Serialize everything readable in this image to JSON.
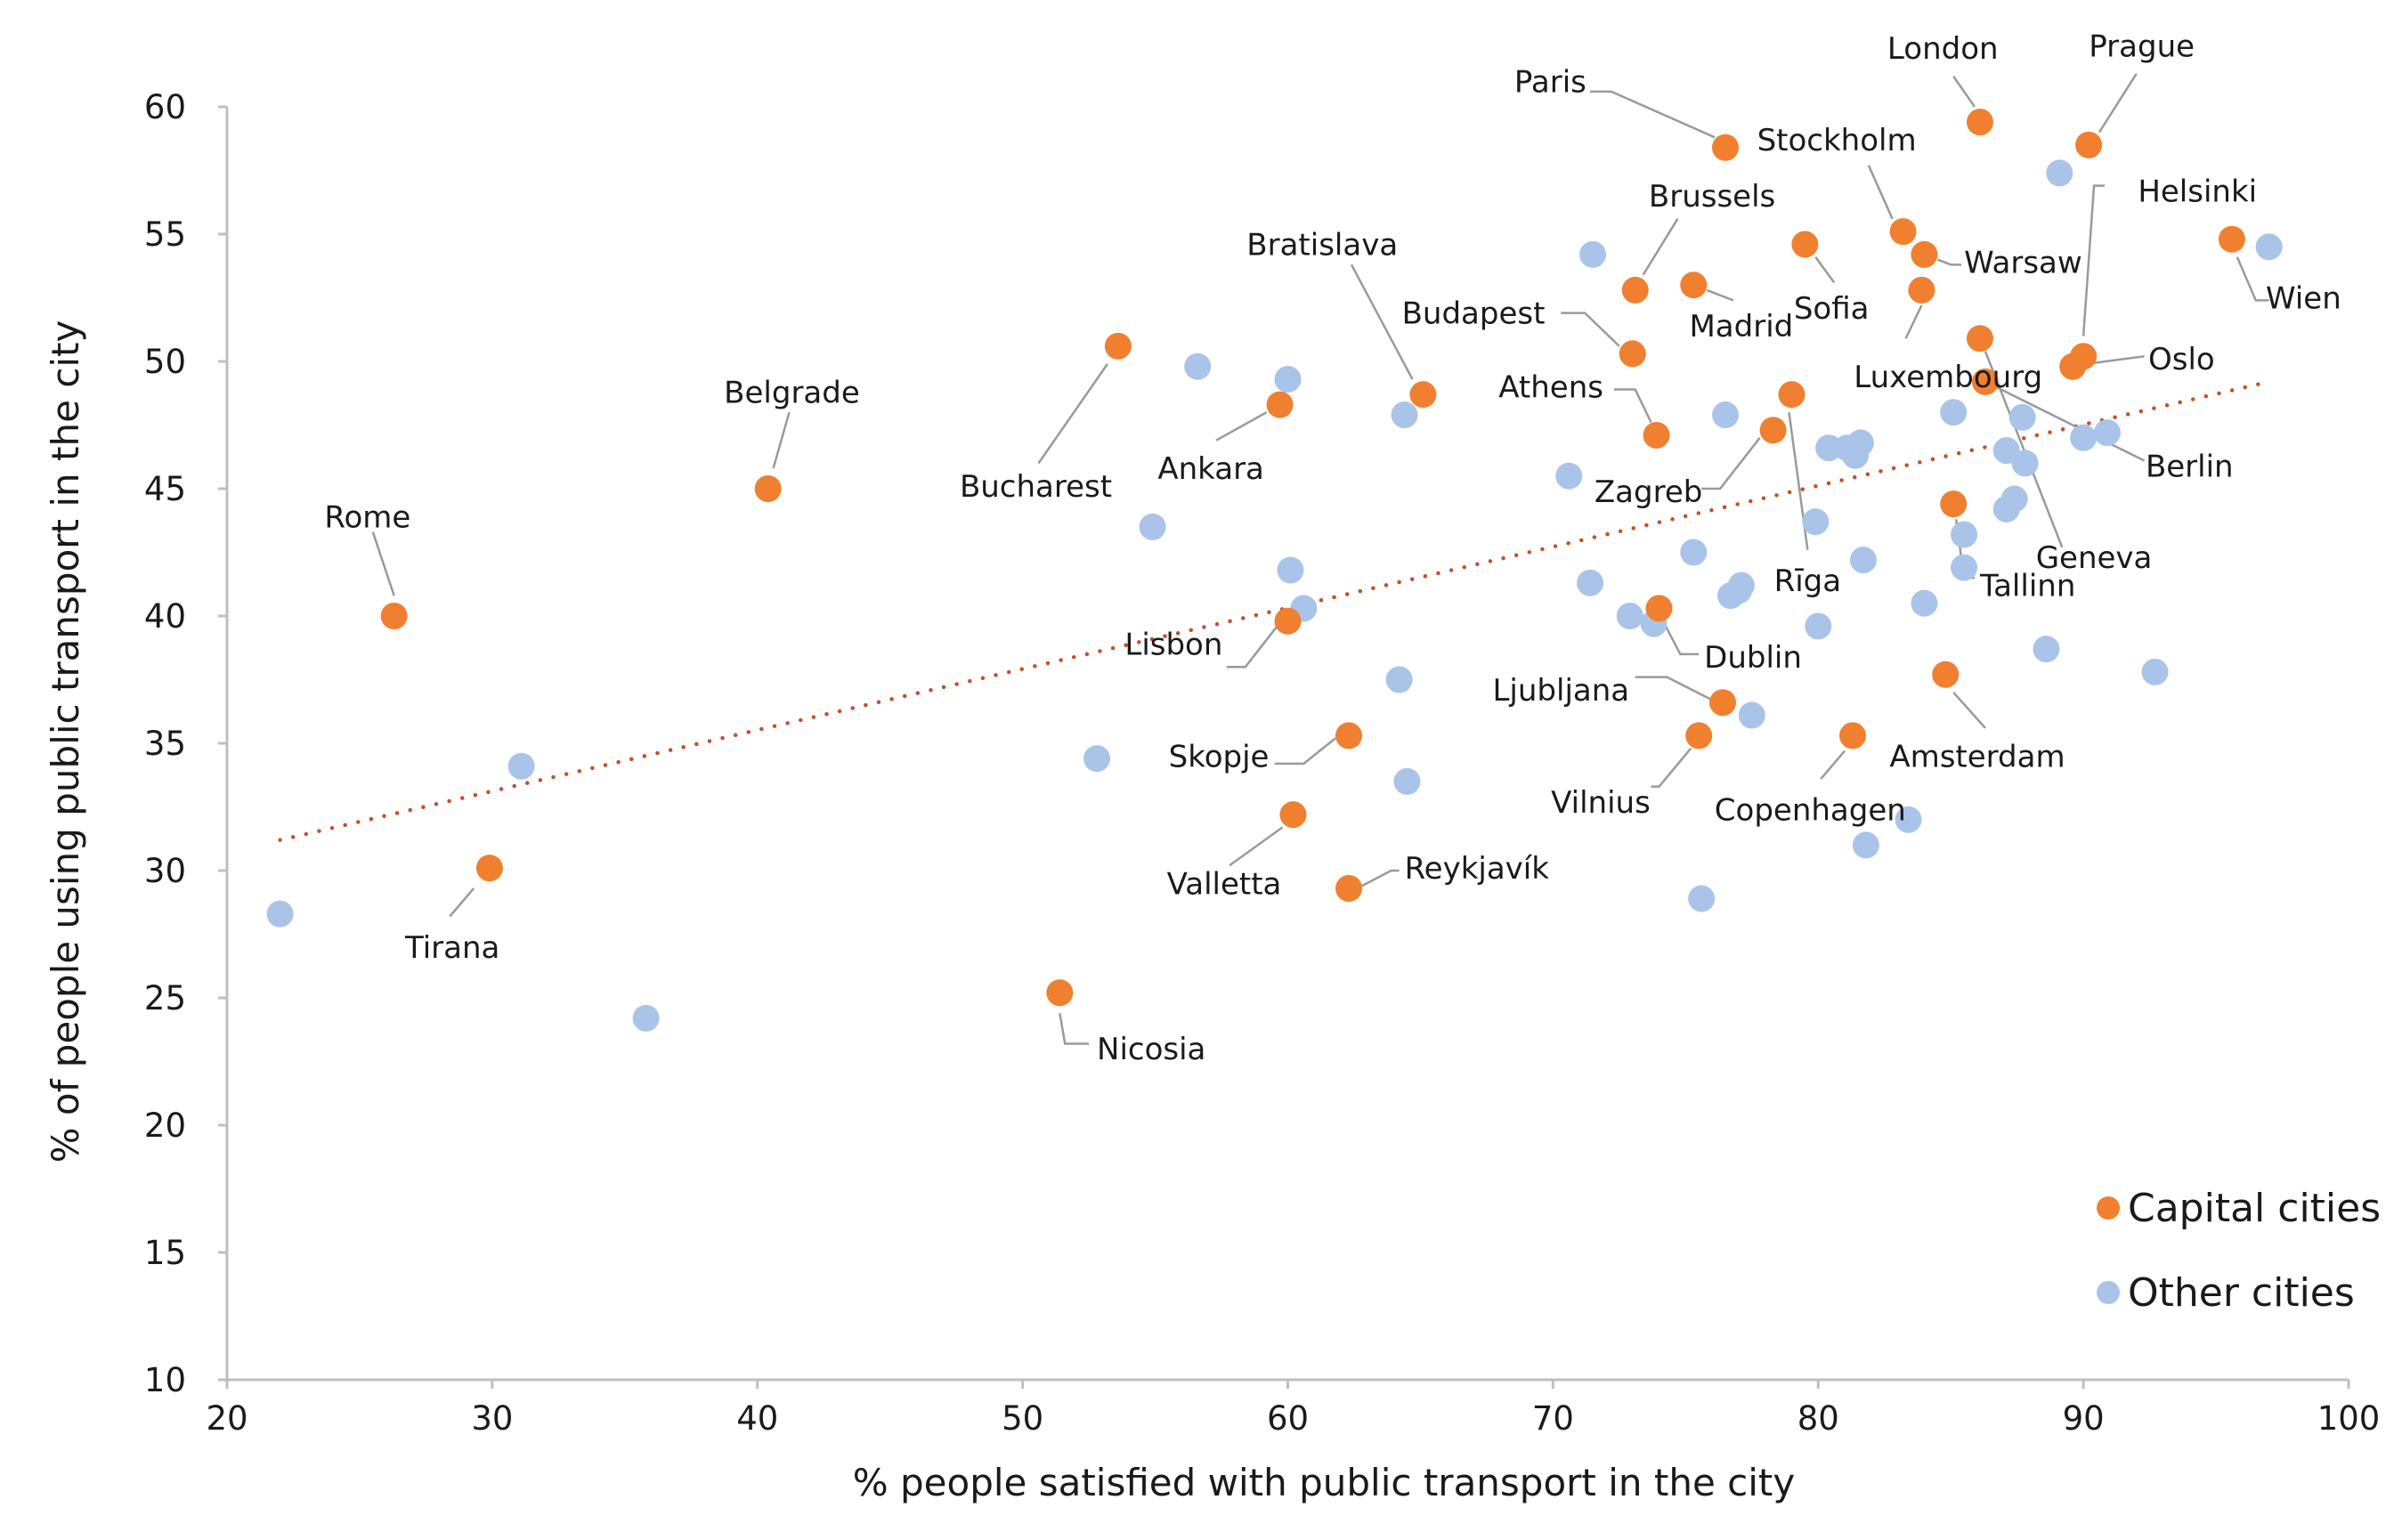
{
  "chart_data": {
    "type": "scatter",
    "title": "",
    "xlabel": "% people satisfied with public transport in the city",
    "ylabel": "% of people using public transport in the city",
    "xlim": [
      20,
      100
    ],
    "ylim": [
      10,
      60
    ],
    "xticks": [
      20,
      30,
      40,
      50,
      60,
      70,
      80,
      90,
      100
    ],
    "yticks": [
      10,
      15,
      20,
      25,
      30,
      35,
      40,
      45,
      50,
      55,
      60
    ],
    "grid": false,
    "legend_position": "bottom-right",
    "colors": {
      "capital": "#f07f2f",
      "other": "#a9c4e8",
      "trend": "#c0502a",
      "axis": "#bfbfbf",
      "leader": "#9a9a9a"
    },
    "trendline": {
      "style": "dotted",
      "x": [
        22,
        97
      ],
      "y": [
        31.2,
        49.2
      ]
    },
    "series": [
      {
        "name": "Capital cities",
        "key": "capital",
        "points": [
          {
            "label": "Rome",
            "x": 26.3,
            "y": 40.0
          },
          {
            "label": "Tirana",
            "x": 29.9,
            "y": 30.1
          },
          {
            "label": "Belgrade",
            "x": 40.4,
            "y": 45.0
          },
          {
            "label": "Nicosia",
            "x": 51.4,
            "y": 25.2
          },
          {
            "label": "Bucharest",
            "x": 53.6,
            "y": 50.6
          },
          {
            "label": "Ankara",
            "x": 59.7,
            "y": 48.3
          },
          {
            "label": "Lisbon",
            "x": 60.0,
            "y": 39.8
          },
          {
            "label": "Valletta",
            "x": 60.2,
            "y": 32.2
          },
          {
            "label": "Skopje",
            "x": 62.3,
            "y": 35.3
          },
          {
            "label": "Reykjavík",
            "x": 62.3,
            "y": 29.3
          },
          {
            "label": "Bratislava",
            "x": 65.1,
            "y": 48.7
          },
          {
            "label": "Budapest",
            "x": 73.0,
            "y": 50.3
          },
          {
            "label": "Brussels",
            "x": 73.1,
            "y": 52.8
          },
          {
            "label": "Athens",
            "x": 73.9,
            "y": 47.1
          },
          {
            "label": "Dublin",
            "x": 74.0,
            "y": 40.3
          },
          {
            "label": "Madrid",
            "x": 75.3,
            "y": 53.0
          },
          {
            "label": "Vilnius",
            "x": 75.5,
            "y": 35.3
          },
          {
            "label": "Paris",
            "x": 76.5,
            "y": 58.4
          },
          {
            "label": "Ljubljana",
            "x": 76.4,
            "y": 36.6
          },
          {
            "label": "Zagreb",
            "x": 78.3,
            "y": 47.3
          },
          {
            "label": "Rīga",
            "x": 79.0,
            "y": 48.7
          },
          {
            "label": "Sofia",
            "x": 79.5,
            "y": 54.6
          },
          {
            "label": "Copenhagen",
            "x": 81.3,
            "y": 35.3
          },
          {
            "label": "Stockholm",
            "x": 83.2,
            "y": 55.1
          },
          {
            "label": "Luxembourg",
            "x": 83.9,
            "y": 52.8
          },
          {
            "label": "Warsaw",
            "x": 84.0,
            "y": 54.2
          },
          {
            "label": "Amsterdam",
            "x": 84.8,
            "y": 37.7
          },
          {
            "label": "Tallinn",
            "x": 85.1,
            "y": 44.4
          },
          {
            "label": "London",
            "x": 86.1,
            "y": 59.4
          },
          {
            "label": "Geneva",
            "x": 86.1,
            "y": 50.9
          },
          {
            "label": "Berlin",
            "x": 86.3,
            "y": 49.2
          },
          {
            "label": "Oslo",
            "x": 89.6,
            "y": 49.8
          },
          {
            "label": "Helsinki",
            "x": 90.0,
            "y": 50.2
          },
          {
            "label": "Prague",
            "x": 90.2,
            "y": 58.5
          },
          {
            "label": "Wien",
            "x": 95.6,
            "y": 54.8
          }
        ]
      },
      {
        "name": "Other cities",
        "key": "other",
        "points": [
          {
            "x": 22.0,
            "y": 28.3
          },
          {
            "x": 31.1,
            "y": 34.1
          },
          {
            "x": 35.8,
            "y": 24.2
          },
          {
            "x": 52.8,
            "y": 34.4
          },
          {
            "x": 54.9,
            "y": 43.5
          },
          {
            "x": 56.6,
            "y": 49.8
          },
          {
            "x": 60.0,
            "y": 49.3
          },
          {
            "x": 60.1,
            "y": 41.8
          },
          {
            "x": 60.6,
            "y": 40.3
          },
          {
            "x": 64.2,
            "y": 37.5
          },
          {
            "x": 64.4,
            "y": 47.9
          },
          {
            "x": 64.5,
            "y": 33.5
          },
          {
            "x": 70.6,
            "y": 45.5
          },
          {
            "x": 71.5,
            "y": 54.2
          },
          {
            "x": 71.4,
            "y": 41.3
          },
          {
            "x": 72.9,
            "y": 40.0
          },
          {
            "x": 73.8,
            "y": 39.7
          },
          {
            "x": 75.3,
            "y": 42.5
          },
          {
            "x": 75.6,
            "y": 28.9
          },
          {
            "x": 76.5,
            "y": 47.9
          },
          {
            "x": 76.7,
            "y": 40.8
          },
          {
            "x": 77.0,
            "y": 41.0
          },
          {
            "x": 77.1,
            "y": 41.2
          },
          {
            "x": 77.5,
            "y": 36.1
          },
          {
            "x": 79.9,
            "y": 43.7
          },
          {
            "x": 80.0,
            "y": 39.6
          },
          {
            "x": 80.4,
            "y": 46.6
          },
          {
            "x": 81.1,
            "y": 46.6
          },
          {
            "x": 81.4,
            "y": 46.3
          },
          {
            "x": 81.6,
            "y": 46.8
          },
          {
            "x": 81.7,
            "y": 42.2
          },
          {
            "x": 81.8,
            "y": 31.0
          },
          {
            "x": 83.4,
            "y": 32.0
          },
          {
            "x": 84.0,
            "y": 40.5
          },
          {
            "x": 85.1,
            "y": 48.0
          },
          {
            "x": 85.5,
            "y": 43.2
          },
          {
            "x": 85.5,
            "y": 41.9
          },
          {
            "x": 87.1,
            "y": 46.5
          },
          {
            "x": 87.1,
            "y": 44.2
          },
          {
            "x": 87.4,
            "y": 44.6
          },
          {
            "x": 87.7,
            "y": 47.8
          },
          {
            "x": 87.8,
            "y": 46.0
          },
          {
            "x": 88.6,
            "y": 38.7
          },
          {
            "x": 89.1,
            "y": 57.4
          },
          {
            "x": 90.0,
            "y": 47.0
          },
          {
            "x": 90.9,
            "y": 47.2
          },
          {
            "x": 92.7,
            "y": 37.8
          },
          {
            "x": 97.0,
            "y": 54.5
          }
        ]
      }
    ],
    "labels": [
      {
        "text": "Rome",
        "tx": 25.3,
        "ty": 43.9,
        "anchor": "middle",
        "lead": [
          [
            25.5,
            43.3
          ],
          [
            26.3,
            40.8
          ]
        ]
      },
      {
        "text": "Tirana",
        "tx": 28.5,
        "ty": 27.0,
        "anchor": "middle",
        "lead": [
          [
            29.3,
            29.3
          ],
          [
            28.4,
            28.2
          ]
        ]
      },
      {
        "text": "Belgrade",
        "tx": 41.3,
        "ty": 48.8,
        "anchor": "middle",
        "lead": [
          [
            41.2,
            48.0
          ],
          [
            40.6,
            45.8
          ]
        ]
      },
      {
        "text": "Nicosia",
        "tx": 52.8,
        "ty": 23.0,
        "anchor": "start",
        "lead": [
          [
            51.4,
            24.4
          ],
          [
            51.6,
            23.2
          ],
          [
            52.5,
            23.2
          ]
        ]
      },
      {
        "text": "Bucharest",
        "tx": 50.5,
        "ty": 45.1,
        "anchor": "middle",
        "lead": [
          [
            53.2,
            49.9
          ],
          [
            50.6,
            46.0
          ]
        ]
      },
      {
        "text": "Ankara",
        "tx": 57.1,
        "ty": 45.8,
        "anchor": "middle",
        "lead": [
          [
            59.2,
            48.0
          ],
          [
            57.3,
            46.9
          ]
        ]
      },
      {
        "text": "Lisbon",
        "tx": 55.7,
        "ty": 38.9,
        "anchor": "middle",
        "lead": [
          [
            59.6,
            39.6
          ],
          [
            58.4,
            38.0
          ],
          [
            57.7,
            38.0
          ]
        ]
      },
      {
        "text": "Valletta",
        "tx": 57.6,
        "ty": 29.5,
        "anchor": "middle",
        "lead": [
          [
            59.8,
            31.7
          ],
          [
            57.8,
            30.2
          ]
        ]
      },
      {
        "text": "Skopje",
        "tx": 57.4,
        "ty": 34.5,
        "anchor": "middle",
        "lead": [
          [
            61.8,
            35.2
          ],
          [
            60.6,
            34.2
          ],
          [
            59.5,
            34.2
          ]
        ]
      },
      {
        "text": "Reykjavík",
        "tx": 64.4,
        "ty": 30.1,
        "anchor": "start",
        "lead": [
          [
            62.8,
            29.4
          ],
          [
            63.9,
            30.0
          ],
          [
            64.2,
            30.0
          ]
        ]
      },
      {
        "text": "Bratislava",
        "tx": 61.3,
        "ty": 54.6,
        "anchor": "middle",
        "lead": [
          [
            64.7,
            49.3
          ],
          [
            62.4,
            53.8
          ]
        ]
      },
      {
        "text": "Budapest",
        "tx": 67.0,
        "ty": 51.9,
        "anchor": "middle",
        "lead": [
          [
            72.5,
            50.6
          ],
          [
            71.2,
            51.9
          ],
          [
            70.3,
            51.9
          ]
        ]
      },
      {
        "text": "Brussels",
        "tx": 76.0,
        "ty": 56.5,
        "anchor": "middle",
        "lead": [
          [
            73.4,
            53.4
          ],
          [
            74.7,
            55.6
          ]
        ]
      },
      {
        "text": "Athens",
        "tx": 71.9,
        "ty": 49.0,
        "anchor": "end",
        "lead": [
          [
            73.7,
            47.6
          ],
          [
            73.1,
            48.9
          ],
          [
            72.3,
            48.9
          ]
        ]
      },
      {
        "text": "Dublin",
        "tx": 75.7,
        "ty": 38.4,
        "anchor": "start",
        "lead": [
          [
            74.2,
            39.7
          ],
          [
            74.8,
            38.5
          ],
          [
            75.5,
            38.5
          ]
        ]
      },
      {
        "text": "Madrid",
        "tx": 77.1,
        "ty": 51.4,
        "anchor": "middle",
        "lead": [
          [
            75.8,
            52.8
          ],
          [
            76.8,
            52.4
          ]
        ]
      },
      {
        "text": "Vilnius",
        "tx": 71.8,
        "ty": 32.7,
        "anchor": "middle",
        "lead": [
          [
            75.2,
            34.8
          ],
          [
            74.0,
            33.3
          ],
          [
            73.7,
            33.3
          ]
        ]
      },
      {
        "text": "Paris",
        "tx": 69.9,
        "ty": 61.0,
        "anchor": "middle",
        "lead": [
          [
            76.1,
            58.8
          ],
          [
            72.2,
            60.6
          ],
          [
            71.4,
            60.6
          ]
        ]
      },
      {
        "text": "Ljubljana",
        "tx": 70.3,
        "ty": 37.1,
        "anchor": "middle",
        "lead": [
          [
            76.0,
            36.7
          ],
          [
            74.3,
            37.6
          ],
          [
            73.1,
            37.6
          ]
        ]
      },
      {
        "text": "Zagreb",
        "tx": 73.6,
        "ty": 44.9,
        "anchor": "middle",
        "lead": [
          [
            77.8,
            47.0
          ],
          [
            76.3,
            45.0
          ],
          [
            75.6,
            45.0
          ]
        ]
      },
      {
        "text": "Rīga",
        "tx": 79.6,
        "ty": 41.4,
        "anchor": "middle",
        "lead": [
          [
            78.9,
            48.0
          ],
          [
            79.6,
            42.6
          ]
        ]
      },
      {
        "text": "Sofia",
        "tx": 80.5,
        "ty": 52.1,
        "anchor": "middle",
        "lead": [
          [
            79.9,
            54.1
          ],
          [
            80.6,
            53.1
          ]
        ]
      },
      {
        "text": "Copenhagen",
        "tx": 79.7,
        "ty": 32.4,
        "anchor": "middle",
        "lead": [
          [
            81.0,
            34.7
          ],
          [
            80.1,
            33.6
          ]
        ]
      },
      {
        "text": "Stockholm",
        "tx": 80.7,
        "ty": 58.7,
        "anchor": "middle",
        "lead": [
          [
            82.8,
            55.6
          ],
          [
            81.9,
            57.7
          ]
        ]
      },
      {
        "text": "Luxembourg",
        "tx": 84.9,
        "ty": 49.4,
        "anchor": "middle",
        "lead": [
          [
            83.9,
            52.2
          ],
          [
            83.3,
            50.9
          ]
        ]
      },
      {
        "text": "Warsaw",
        "tx": 85.5,
        "ty": 53.9,
        "anchor": "start",
        "lead": [
          [
            84.5,
            54.0
          ],
          [
            85.0,
            53.8
          ],
          [
            85.4,
            53.8
          ]
        ]
      },
      {
        "text": "Amsterdam",
        "tx": 86.0,
        "ty": 34.5,
        "anchor": "middle",
        "lead": [
          [
            85.1,
            37.0
          ],
          [
            86.3,
            35.6
          ]
        ]
      },
      {
        "text": "Tallinn",
        "tx": 86.1,
        "ty": 41.2,
        "anchor": "start",
        "lead": [
          [
            85.2,
            43.8
          ],
          [
            85.5,
            41.5
          ],
          [
            85.9,
            41.5
          ]
        ]
      },
      {
        "text": "London",
        "tx": 84.7,
        "ty": 62.3,
        "anchor": "middle",
        "lead": [
          [
            85.9,
            60.0
          ],
          [
            85.1,
            61.2
          ]
        ]
      },
      {
        "text": "Geneva",
        "tx": 90.4,
        "ty": 42.3,
        "anchor": "middle",
        "lead": [
          [
            86.3,
            50.4
          ],
          [
            89.2,
            42.7
          ]
        ]
      },
      {
        "text": "Berlin",
        "tx": 94.0,
        "ty": 45.9,
        "anchor": "middle",
        "lead": [
          [
            86.7,
            49.0
          ],
          [
            92.3,
            46.1
          ]
        ]
      },
      {
        "text": "Oslo",
        "tx": 93.7,
        "ty": 50.1,
        "anchor": "middle",
        "lead": [
          [
            90.1,
            49.9
          ],
          [
            92.3,
            50.2
          ]
        ]
      },
      {
        "text": "Helsinki",
        "tx": 94.3,
        "ty": 56.7,
        "anchor": "middle",
        "lead": [
          [
            90.0,
            51.0
          ],
          [
            90.4,
            56.9
          ],
          [
            90.8,
            56.9
          ]
        ]
      },
      {
        "text": "Prague",
        "tx": 92.2,
        "ty": 62.4,
        "anchor": "middle",
        "lead": [
          [
            90.6,
            59.0
          ],
          [
            92.0,
            61.3
          ]
        ]
      },
      {
        "text": "Wien",
        "tx": 98.3,
        "ty": 52.5,
        "anchor": "middle",
        "lead": [
          [
            95.8,
            54.1
          ],
          [
            96.5,
            52.4
          ],
          [
            97.0,
            52.4
          ]
        ]
      }
    ]
  }
}
